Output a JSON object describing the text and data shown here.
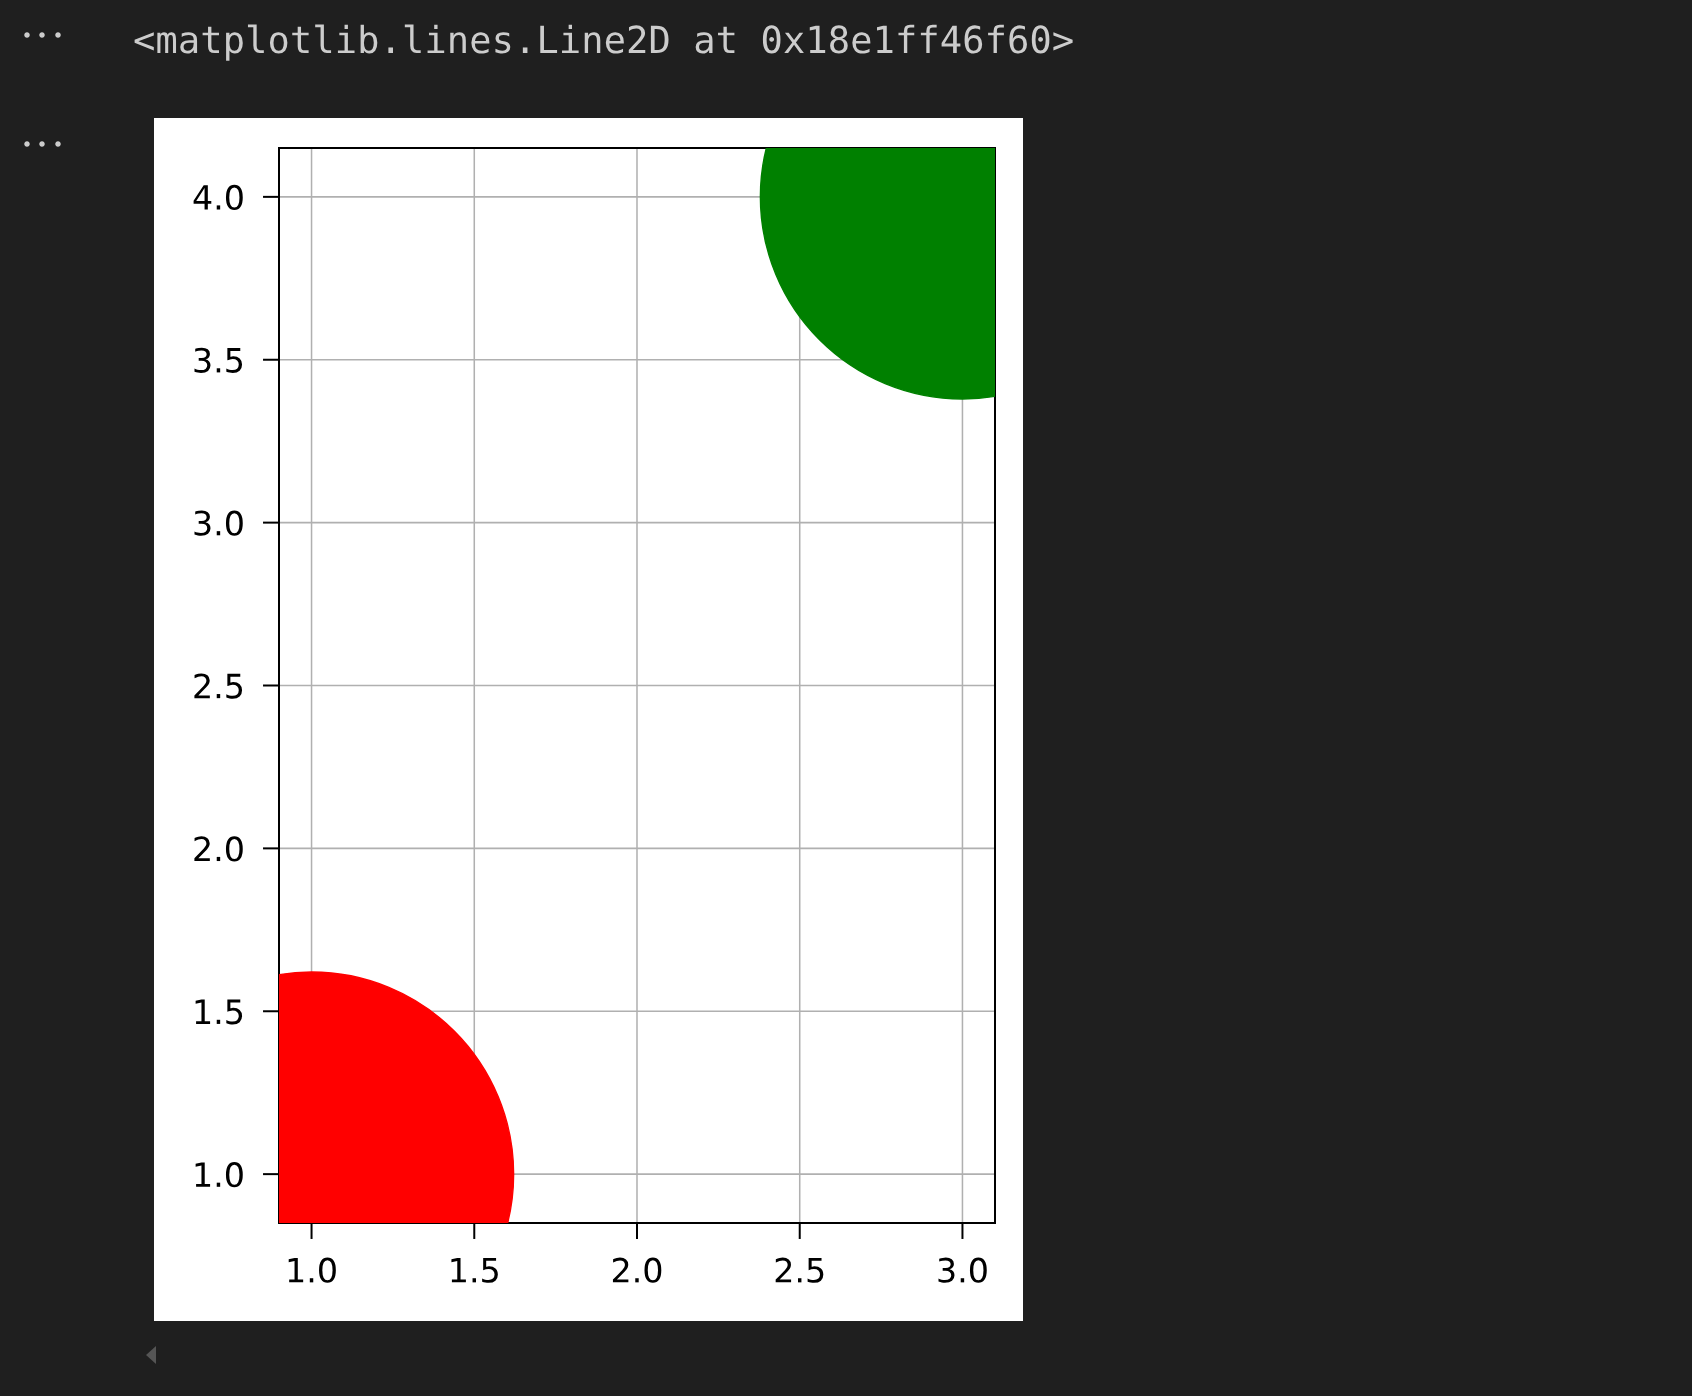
{
  "chart_data": {
    "type": "scatter",
    "series": [
      {
        "color": "#ff0000",
        "x": [
          1
        ],
        "values": [
          1
        ]
      },
      {
        "color": "#008000",
        "x": [
          3
        ],
        "values": [
          4
        ]
      }
    ],
    "xlim": [
      0.9,
      3.1
    ],
    "ylim": [
      0.85,
      4.15
    ],
    "xticks": [
      {
        "value": 1,
        "label": "1.0"
      },
      {
        "value": 1.5,
        "label": "1.5"
      },
      {
        "value": 2,
        "label": "2.0"
      },
      {
        "value": 2.5,
        "label": "2.5"
      },
      {
        "value": 3,
        "label": "3.0"
      }
    ],
    "yticks": [
      {
        "value": 1,
        "label": "1.0"
      },
      {
        "value": 1.5,
        "label": "1.5"
      },
      {
        "value": 2,
        "label": "2.0"
      },
      {
        "value": 2.5,
        "label": "2.5"
      },
      {
        "value": 3,
        "label": "3.0"
      },
      {
        "value": 3.5,
        "label": "3.5"
      },
      {
        "value": 4,
        "label": "4.0"
      }
    ],
    "grid": true,
    "marker": "circle",
    "annotations": [
      "<matplotlib.lines.Line2D at 0x18e1ff46f60>"
    ]
  }
}
